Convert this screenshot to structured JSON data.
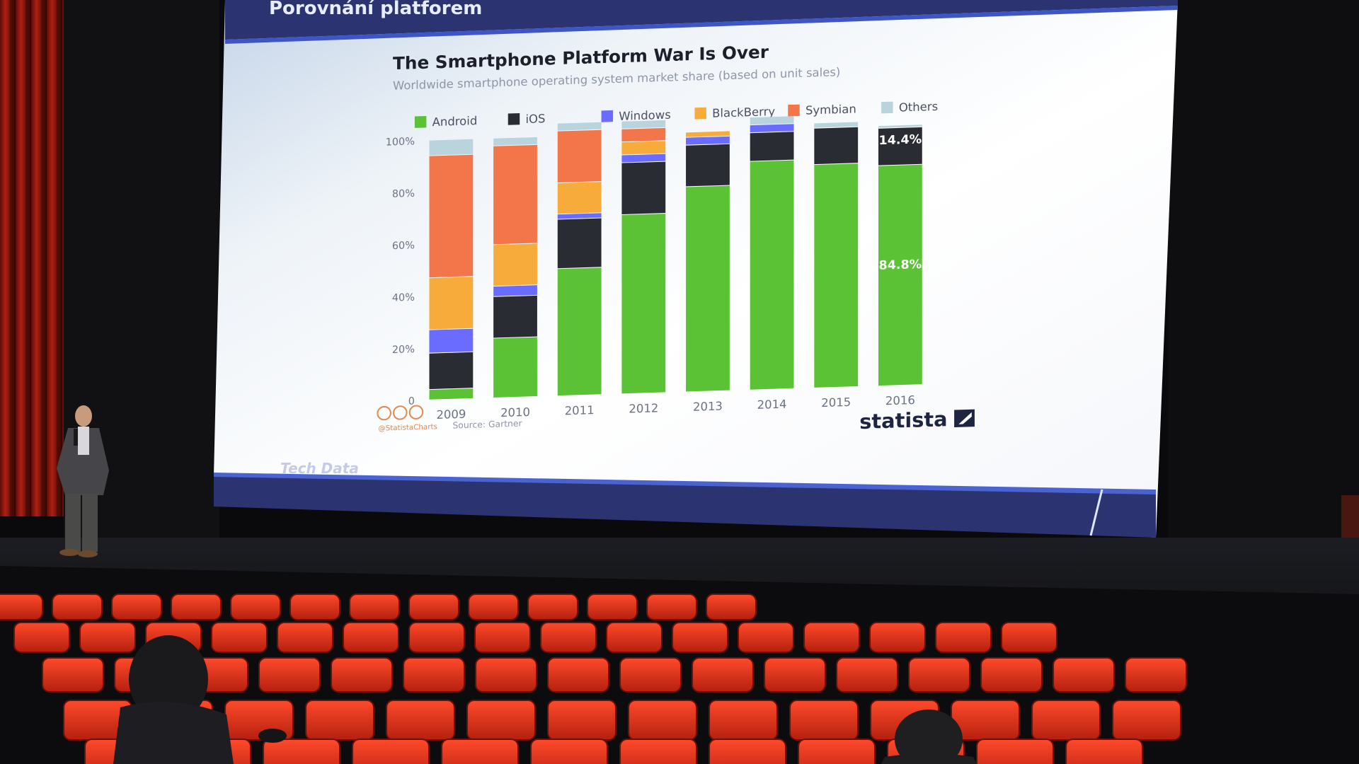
{
  "slide": {
    "header_title": "Porovnání platforem",
    "footer_brand": "Tech Data"
  },
  "chart_data": {
    "type": "bar",
    "stacked": true,
    "title": "The Smartphone Platform War Is Over",
    "subtitle": "Worldwide smartphone operating system market share (based on unit sales)",
    "legend_position": "top",
    "categories": [
      "2009",
      "2010",
      "2011",
      "2012",
      "2013",
      "2014",
      "2015",
      "2016"
    ],
    "y_tick_labels": [
      "0",
      "20%",
      "40%",
      "60%",
      "80%",
      "100%"
    ],
    "ylim": [
      0,
      100
    ],
    "grid": false,
    "series": [
      {
        "name": "Android",
        "color": "#5bc236",
        "values": [
          4,
          23,
          49,
          69,
          79,
          88,
          86,
          84.8
        ]
      },
      {
        "name": "iOS",
        "color": "#2a2c33",
        "values": [
          14,
          16,
          19,
          20,
          16,
          11,
          14,
          14.4
        ]
      },
      {
        "name": "Windows",
        "color": "#6a6cff",
        "values": [
          9,
          4,
          2,
          3,
          3,
          3,
          0,
          0
        ]
      },
      {
        "name": "BlackBerry",
        "color": "#f6ab3a",
        "values": [
          20,
          16,
          12,
          5,
          2,
          0,
          0,
          0
        ]
      },
      {
        "name": "Symbian",
        "color": "#f2764a",
        "values": [
          47,
          38,
          20,
          5,
          0,
          0,
          0,
          0
        ]
      },
      {
        "name": "Others",
        "color": "#b9d4dc",
        "values": [
          6,
          3,
          3,
          3,
          0,
          3,
          2,
          1
        ]
      }
    ],
    "data_labels": [
      {
        "category": "2016",
        "series": "Android",
        "text": "84.8%"
      },
      {
        "category": "2016",
        "series": "iOS",
        "text": "14.4%"
      }
    ],
    "credit": "@StatistaCharts",
    "source": "Source: Gartner",
    "brand": "statista"
  }
}
